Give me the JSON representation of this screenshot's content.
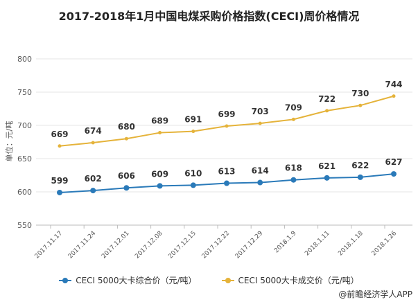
{
  "chart_data": {
    "type": "line",
    "title": "2017-2018年1月中国电煤采购价格指数(CECI)周价格情况",
    "ylabel": "单位：元/吨",
    "xlabel": "",
    "ylim": [
      550,
      800
    ],
    "yticks": [
      550,
      600,
      650,
      700,
      750,
      800
    ],
    "grid": true,
    "legend": "bottom",
    "categories": [
      "2017.11.17",
      "2017.11.24",
      "2017.12.01",
      "2017.12.08",
      "2017.12.15",
      "2017.12.22",
      "2017.12.29",
      "2018.1.9",
      "2018.1.11",
      "2018.1.18",
      "2018.1.26"
    ],
    "series": [
      {
        "name": "CECI 5000大卡综合价（元/吨）",
        "color": "#2a7ab9",
        "values": [
          599,
          602,
          606,
          609,
          610,
          613,
          614,
          618,
          621,
          622,
          627
        ]
      },
      {
        "name": "CECI 5000大卡成交价（元/吨）",
        "color": "#e5b33a",
        "values": [
          669,
          674,
          680,
          689,
          691,
          699,
          703,
          709,
          722,
          730,
          744
        ]
      }
    ]
  },
  "footer": "@前瞻经济学人APP"
}
